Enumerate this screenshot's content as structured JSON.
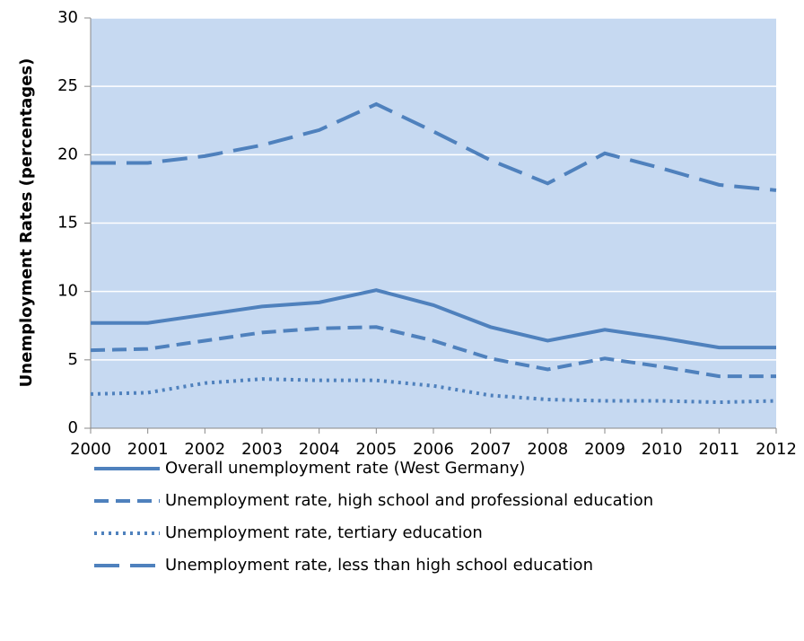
{
  "chart_data": {
    "type": "line",
    "y_label": "Unemployment Rates (percentages)",
    "categories": [
      "2000",
      "2001",
      "2002",
      "2003",
      "2004",
      "2005",
      "2006",
      "2007",
      "2008",
      "2009",
      "2010",
      "2011",
      "2012"
    ],
    "series": [
      {
        "name": "Overall unemployment rate (West Germany)",
        "color": "#4f81bd",
        "dash": "solid",
        "values": [
          7.7,
          7.7,
          8.3,
          8.9,
          9.2,
          10.1,
          9.0,
          7.4,
          6.4,
          7.2,
          6.6,
          5.9,
          5.9
        ]
      },
      {
        "name": "Unemployment rate, high school and professional education",
        "color": "#4f81bd",
        "dash": "dash",
        "values": [
          5.7,
          5.8,
          6.4,
          7.0,
          7.3,
          7.4,
          6.4,
          5.1,
          4.3,
          5.1,
          4.5,
          3.8,
          3.8
        ]
      },
      {
        "name": "Unemployment rate, tertiary education",
        "color": "#4f81bd",
        "dash": "dot",
        "values": [
          2.5,
          2.6,
          3.3,
          3.6,
          3.5,
          3.5,
          3.1,
          2.4,
          2.1,
          2.0,
          2.0,
          1.9,
          2.0
        ]
      },
      {
        "name": "Unemployment rate, less than high school education",
        "color": "#4f81bd",
        "dash": "longdash",
        "values": [
          19.4,
          19.4,
          19.9,
          20.7,
          21.8,
          23.7,
          21.7,
          19.6,
          17.9,
          20.1,
          19.0,
          17.8,
          17.4
        ]
      }
    ],
    "ylim": [
      0,
      30
    ],
    "yticks": [
      0,
      5,
      10,
      15,
      20,
      25,
      30
    ],
    "grid": true,
    "plot_background": "#c6d9f1"
  }
}
